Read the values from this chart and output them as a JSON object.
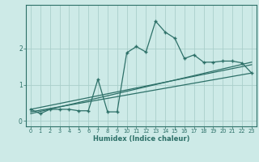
{
  "xlabel": "Humidex (Indice chaleur)",
  "bg_color": "#cdeae7",
  "line_color": "#2d7068",
  "grid_color": "#aacfcb",
  "xlim": [
    -0.5,
    23.5
  ],
  "ylim": [
    -0.15,
    3.2
  ],
  "xticks": [
    0,
    1,
    2,
    3,
    4,
    5,
    6,
    7,
    8,
    9,
    10,
    11,
    12,
    13,
    14,
    15,
    16,
    17,
    18,
    19,
    20,
    21,
    22,
    23
  ],
  "yticks": [
    0,
    1,
    2
  ],
  "curve_x": [
    0,
    1,
    2,
    3,
    4,
    5,
    6,
    7,
    8,
    9,
    10,
    11,
    12,
    13,
    14,
    15,
    16,
    17,
    18,
    19,
    20,
    21,
    22,
    23
  ],
  "curve_y": [
    0.32,
    0.2,
    0.32,
    0.32,
    0.32,
    0.28,
    0.28,
    1.15,
    0.25,
    0.25,
    1.88,
    2.05,
    1.9,
    2.75,
    2.45,
    2.28,
    1.72,
    1.82,
    1.62,
    1.62,
    1.65,
    1.65,
    1.6,
    1.32
  ],
  "line1_x": [
    0,
    23
  ],
  "line1_y": [
    0.25,
    1.32
  ],
  "line2_x": [
    0,
    23
  ],
  "line2_y": [
    0.32,
    1.55
  ],
  "line3_x": [
    0,
    23
  ],
  "line3_y": [
    0.2,
    1.62
  ]
}
